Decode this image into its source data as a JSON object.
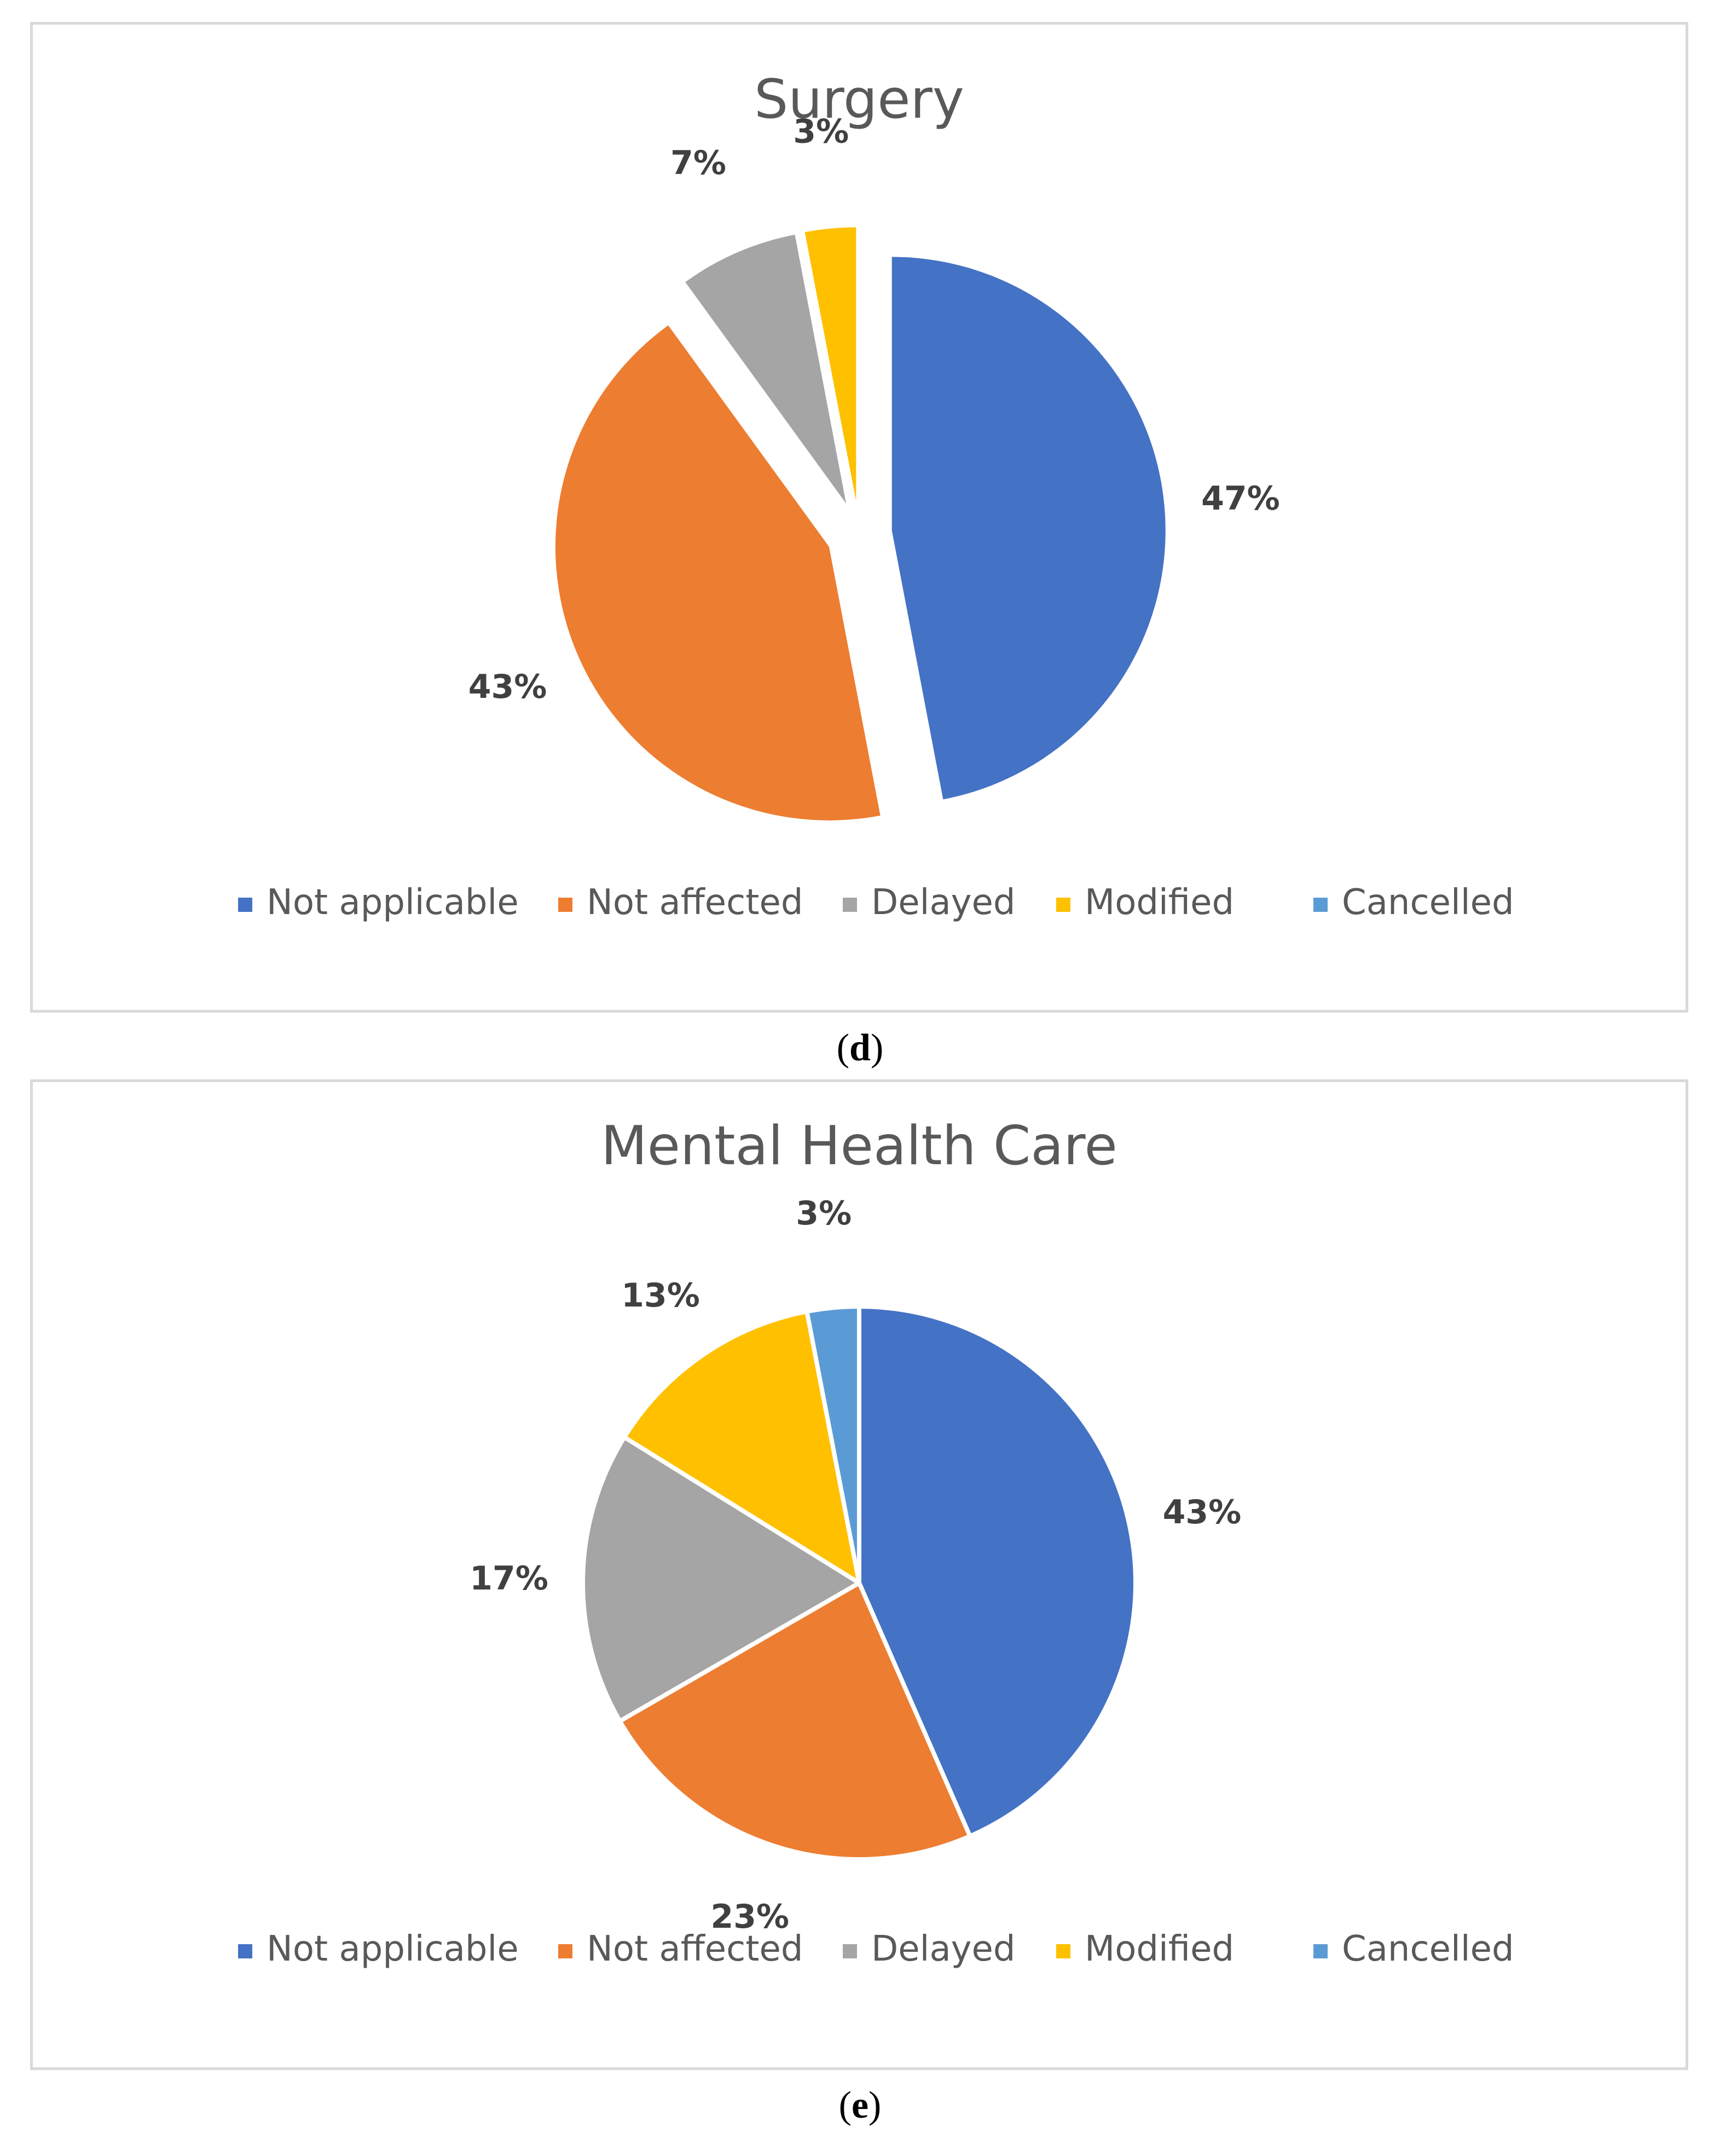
{
  "colors": {
    "not_applicable": "#4472C4",
    "not_affected": "#ED7D31",
    "delayed": "#A5A5A5",
    "modified": "#FFC000",
    "cancelled": "#5B9BD5"
  },
  "chart_data": [
    {
      "type": "pie",
      "title": "Surgery",
      "caption_letter": "d",
      "exploded": true,
      "legend_position": "bottom",
      "categories": [
        "Not applicable",
        "Not affected",
        "Delayed",
        "Modified",
        "Cancelled"
      ],
      "values": [
        47,
        43,
        7,
        3,
        0
      ],
      "labels": [
        "47%",
        "43%",
        "7%",
        "3%",
        ""
      ],
      "colors": [
        "#4472C4",
        "#ED7D31",
        "#A5A5A5",
        "#FFC000",
        "#5B9BD5"
      ]
    },
    {
      "type": "pie",
      "title": "Mental Health Care",
      "caption_letter": "e",
      "exploded": false,
      "legend_position": "bottom",
      "categories": [
        "Not applicable",
        "Not affected",
        "Delayed",
        "Modified",
        "Cancelled"
      ],
      "values": [
        43,
        23,
        17,
        13,
        3
      ],
      "labels": [
        "43%",
        "23%",
        "17%",
        "13%",
        "3%"
      ],
      "colors": [
        "#4472C4",
        "#ED7D31",
        "#A5A5A5",
        "#FFC000",
        "#5B9BD5"
      ]
    }
  ]
}
